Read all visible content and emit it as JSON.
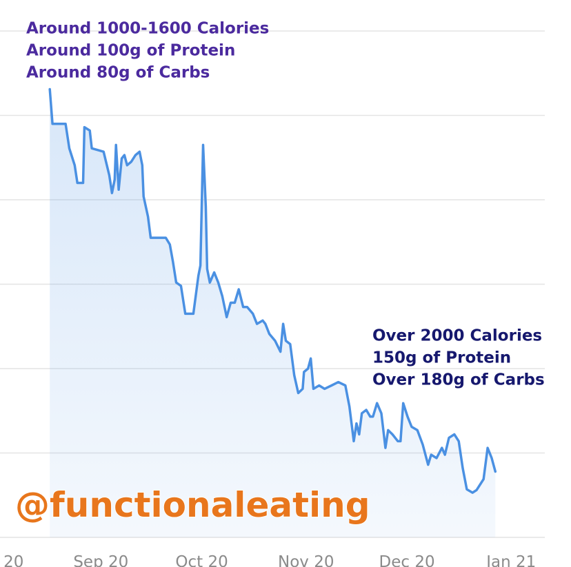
{
  "chart_data": {
    "type": "line",
    "annotations": [
      {
        "lines": [
          "Around 1000-1600 Calories",
          "Around 100g of Protein",
          "Around 80g of Carbs"
        ],
        "color": "#4b2a9e"
      },
      {
        "lines": [
          "Over 2000 Calories",
          "150g of Protein",
          "Over 180g of Carbs"
        ],
        "color": "#16186e"
      }
    ],
    "watermark": "@functionaleating",
    "watermark_color": "#e8761c",
    "color": "#4a90e2",
    "x": [
      15.8,
      16.6,
      20.5,
      21.6,
      23.2,
      24.0,
      25.7,
      26.1,
      27.7,
      28.3,
      31.8,
      33.5,
      34.3,
      35.1,
      35.5,
      36.3,
      37.2,
      38.0,
      38.8,
      40.0,
      41.3,
      42.5,
      43.3,
      43.7,
      45.0,
      45.8,
      47.4,
      50.3,
      51.5,
      52.4,
      53.4,
      54.8,
      56.1,
      58.5,
      60.0,
      60.6,
      61.4,
      62.2,
      62.6,
      63.4,
      64.7,
      65.9,
      67.1,
      68.4,
      69.6,
      70.8,
      72.0,
      73.3,
      74.5,
      76.2,
      77.4,
      79.1,
      79.9,
      81.1,
      82.8,
      84.4,
      85.2,
      86.0,
      87.3,
      88.5,
      89.7,
      91.0,
      91.4,
      92.6,
      93.4,
      94.2,
      95.9,
      97.5,
      99.6,
      101.6,
      103.7,
      104.9,
      106.2,
      107.0,
      107.8,
      108.6,
      109.9,
      111.1,
      111.9,
      113.1,
      114.4,
      115.6,
      116.4,
      117.7,
      119.3,
      120.1,
      120.9,
      122.2,
      123.4,
      125.1,
      126.7,
      128.3,
      129.2,
      130.8,
      132.4,
      133.3,
      134.5,
      136.1,
      137.4,
      138.6,
      139.8,
      141.5,
      142.7,
      144.8,
      146.0,
      147.2,
      148.3
    ],
    "values": [
      5.31,
      4.9,
      4.9,
      4.61,
      4.41,
      4.2,
      4.2,
      4.86,
      4.82,
      4.61,
      4.57,
      4.29,
      4.08,
      4.24,
      4.65,
      4.12,
      4.49,
      4.53,
      4.41,
      4.45,
      4.53,
      4.57,
      4.41,
      4.04,
      3.8,
      3.55,
      3.55,
      3.55,
      3.47,
      3.27,
      3.02,
      2.98,
      2.65,
      2.65,
      3.1,
      3.22,
      4.65,
      3.92,
      3.18,
      3.02,
      3.14,
      3.02,
      2.86,
      2.61,
      2.78,
      2.78,
      2.94,
      2.73,
      2.73,
      2.65,
      2.53,
      2.57,
      2.53,
      2.41,
      2.33,
      2.2,
      2.53,
      2.33,
      2.29,
      1.92,
      1.71,
      1.76,
      1.96,
      2.0,
      2.12,
      1.76,
      1.8,
      1.76,
      1.8,
      1.84,
      1.8,
      1.55,
      1.14,
      1.35,
      1.22,
      1.47,
      1.51,
      1.43,
      1.43,
      1.59,
      1.47,
      1.06,
      1.27,
      1.22,
      1.14,
      1.14,
      1.59,
      1.43,
      1.31,
      1.27,
      1.1,
      0.86,
      0.98,
      0.94,
      1.06,
      0.98,
      1.18,
      1.22,
      1.14,
      0.82,
      0.57,
      0.53,
      0.56,
      0.69,
      1.06,
      0.94,
      0.78
    ],
    "xlim": [
      1,
      163
    ],
    "xticks": [
      {
        "value": 0,
        "label": "20"
      },
      {
        "value": 31,
        "label": "Sep 20"
      },
      {
        "value": 61,
        "label": "Oct 20"
      },
      {
        "value": 92,
        "label": "Nov 20"
      },
      {
        "value": 122,
        "label": "Dec 20"
      },
      {
        "value": 153,
        "label": "Jan 21"
      }
    ],
    "ylim": [
      0,
      6
    ],
    "yticks": [
      0,
      1,
      2,
      3,
      4,
      5,
      6
    ],
    "grid": true
  }
}
